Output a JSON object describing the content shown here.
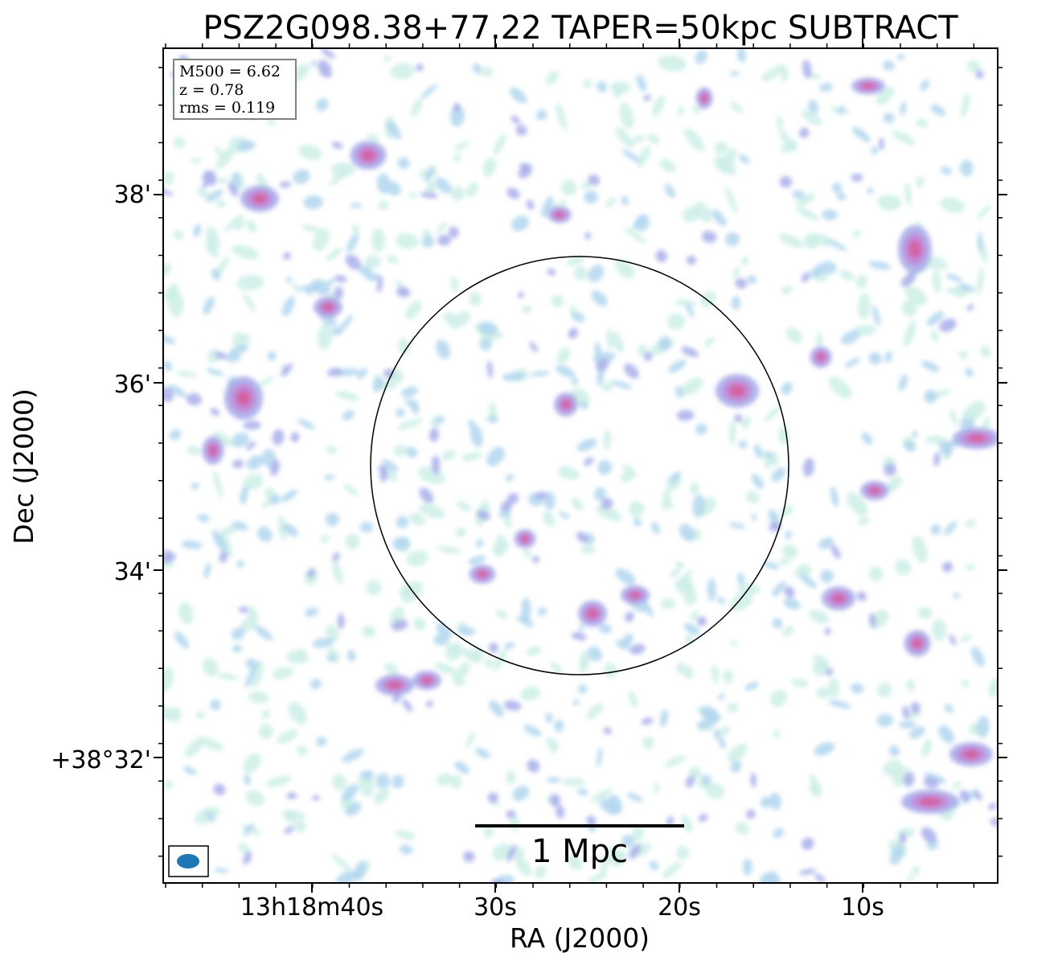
{
  "title": "PSZ2G098.38+77.22 TAPER=50kpc SUBTRACT",
  "info_box": {
    "m500": "M500 = 6.62",
    "z": "z = 0.78",
    "rms": "rms = 0.119"
  },
  "axes": {
    "xlabel": "RA (J2000)",
    "ylabel": "Dec (J2000)",
    "x_ticks": [
      "13h18m40s",
      "30s",
      "20s",
      "10s"
    ],
    "y_ticks": [
      "38'",
      "36'",
      "34'",
      "+38°32'"
    ]
  },
  "scale_bar": {
    "label": "1 Mpc"
  },
  "colors": {
    "faint": "#cdeee6",
    "low": "#b2d6ef",
    "mid": "#a9aeea",
    "high": "#c487d6",
    "peak": "#d45a96",
    "beam": "#1f77b4",
    "frame": "#000000",
    "info_border": "#808080"
  }
}
